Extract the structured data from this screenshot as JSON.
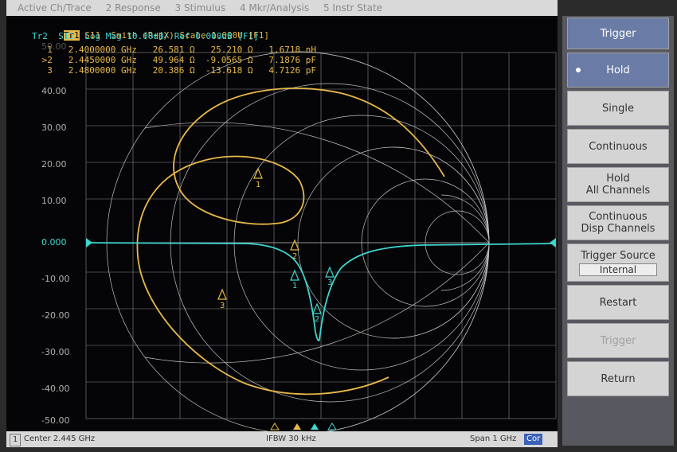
{
  "menu": [
    "Active Ch/Trace",
    "2 Response",
    "3 Stimulus",
    "4 Mkr/Analysis",
    "5 Instr State"
  ],
  "traces": {
    "tr1_label": "Tr1",
    "tr1_text": "S11  Smith (R+jX) Scale 1.000U [F1]",
    "tr2_text": "Tr2  S11  Log Mag 10.00dB/ Ref 0.000dB [F1]"
  },
  "markers": [
    {
      "text": "  1   2.4000000 GHz   26.581 Ω   25.210 Ω   1.6718 nH"
    },
    {
      "text": " >2   2.4450000 GHz   49.964 Ω  -9.0565 Ω   7.1876 pF"
    },
    {
      "text": "  3   2.4800000 GHz   20.386 Ω  -13.618 Ω   4.7126 pF"
    }
  ],
  "y_axis": {
    "top_ghost": "50.00",
    "labels": [
      "40.00",
      "30.00",
      "20.00",
      "10.00",
      "0.000",
      "-10.00",
      "-20.00",
      "-30.00",
      "-40.00",
      "-50.00"
    ]
  },
  "marker_tags": [
    "1",
    "2",
    "3"
  ],
  "status": {
    "channel": "1",
    "center": "Center 2.445 GHz",
    "ifbw": "IFBW 30 kHz",
    "span": "Span 1 GHz",
    "cor": "Cor"
  },
  "softkeys": {
    "title": "Trigger",
    "hold": "Hold",
    "single": "Single",
    "continuous": "Continuous",
    "hold_all_1": "Hold",
    "hold_all_2": "All Channels",
    "cont_disp_1": "Continuous",
    "cont_disp_2": "Disp Channels",
    "trigger_source": "Trigger Source",
    "trigger_source_value": "Internal",
    "restart": "Restart",
    "trigger": "Trigger",
    "return": "Return"
  },
  "colors": {
    "smith_trace": "#e8b84a",
    "logmag_trace": "#3fd6d0",
    "grid": "#b8b8b8",
    "softkey_active": "#6a7ca6"
  }
}
